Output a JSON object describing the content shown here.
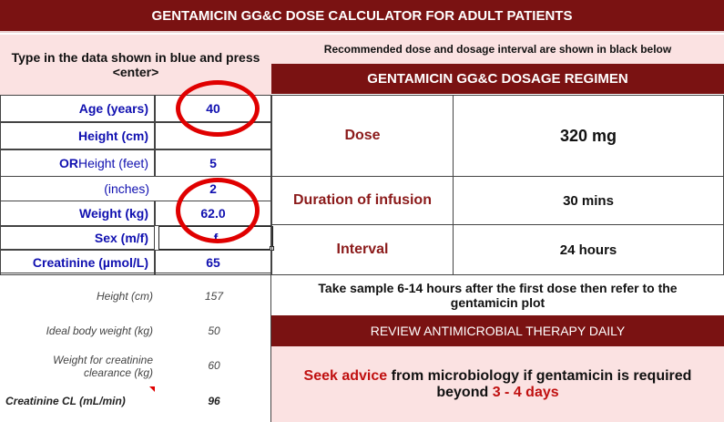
{
  "title": "GENTAMICIN GG&C DOSE CALCULATOR FOR ADULT PATIENTS",
  "left_header": "Type in the data shown in blue and press <enter>",
  "right_header": "Recommended dose and dosage interval are shown in black below",
  "regimen_title": "GENTAMICIN GG&C DOSAGE REGIMEN",
  "inputs": [
    {
      "label": "Age (years)",
      "value": "40"
    },
    {
      "label": "Height (cm)",
      "value": ""
    },
    {
      "label_prefix": "OR",
      "label": " Height (feet)",
      "value": "5"
    },
    {
      "label": "(inches)",
      "value": "2"
    },
    {
      "label": "Weight (kg)",
      "value": "62.0"
    },
    {
      "label": "Sex (m/f)",
      "value": "f"
    },
    {
      "label": "Creatinine (µmol/L)",
      "value": "65"
    }
  ],
  "derived": [
    {
      "label": "Height (cm)",
      "value": "157"
    },
    {
      "label": "Ideal body weight (kg)",
      "value": "50"
    },
    {
      "label": "Weight for creatinine clearance (kg)",
      "value": "60"
    },
    {
      "label": "Creatinine CL (mL/min)",
      "value": "96"
    }
  ],
  "regimen": [
    {
      "label": "Dose",
      "value": "320 mg"
    },
    {
      "label": "Duration of infusion",
      "value": "30 mins"
    },
    {
      "label": "Interval",
      "value": "24 hours"
    }
  ],
  "sample_note": "Take sample 6-14 hours after the first dose then refer to the gentamicin plot",
  "review_banner": "REVIEW ANTIMICROBIAL THERAPY DAILY",
  "advice": {
    "part1": "Seek advice",
    "part2": " from microbiology if gentamicin is required beyond ",
    "part3": "3 - 4 days"
  },
  "colors": {
    "maroon": "#7a1212",
    "pink": "#fbe2e2",
    "input_blue": "#1010b0",
    "highlight_red": "#e00000"
  }
}
